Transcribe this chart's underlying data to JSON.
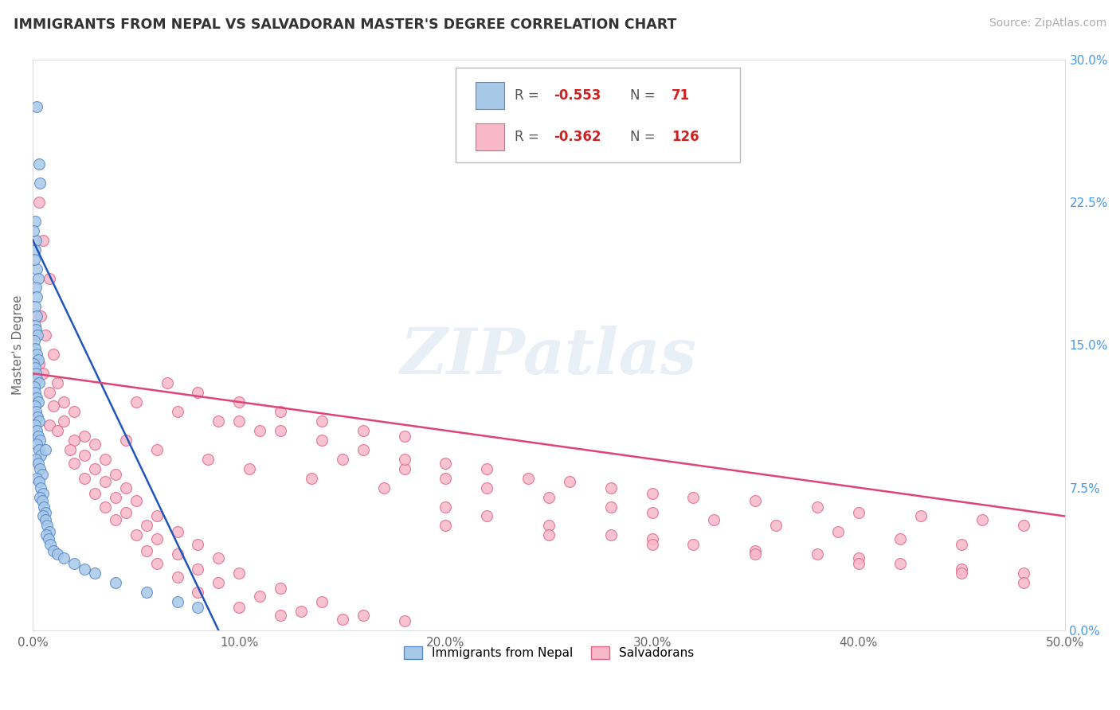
{
  "title": "IMMIGRANTS FROM NEPAL VS SALVADORAN MASTER'S DEGREE CORRELATION CHART",
  "source": "Source: ZipAtlas.com",
  "ylabel_label": "Master's Degree",
  "legend_blue_label": "Immigrants from Nepal",
  "legend_pink_label": "Salvadorans",
  "R_blue": -0.553,
  "N_blue": 71,
  "R_pink": -0.362,
  "N_pink": 126,
  "xmin": 0.0,
  "xmax": 50.0,
  "ymin": 0.0,
  "ymax": 30.0,
  "blue_color": "#a8c8e8",
  "pink_color": "#f8b8c8",
  "blue_line_color": "#2255bb",
  "pink_line_color": "#dd4477",
  "blue_edge": "#5588cc",
  "pink_edge": "#dd6688",
  "watermark_text": "ZIPatlas",
  "x_ticks": [
    0,
    10,
    20,
    30,
    40,
    50
  ],
  "y_ticks_right": [
    0.0,
    7.5,
    15.0,
    22.5,
    30.0
  ],
  "blue_line": [
    [
      0.0,
      20.5
    ],
    [
      9.0,
      0.0
    ]
  ],
  "pink_line": [
    [
      0.0,
      13.5
    ],
    [
      50.0,
      6.0
    ]
  ],
  "blue_scatter": [
    [
      0.2,
      27.5
    ],
    [
      0.3,
      24.5
    ],
    [
      0.35,
      23.5
    ],
    [
      0.1,
      21.5
    ],
    [
      0.15,
      20.5
    ],
    [
      0.2,
      19.0
    ],
    [
      0.25,
      18.5
    ],
    [
      0.05,
      21.0
    ],
    [
      0.1,
      20.0
    ],
    [
      0.08,
      19.5
    ],
    [
      0.15,
      18.0
    ],
    [
      0.2,
      17.5
    ],
    [
      0.12,
      17.0
    ],
    [
      0.18,
      16.5
    ],
    [
      0.1,
      16.0
    ],
    [
      0.15,
      15.8
    ],
    [
      0.22,
      15.5
    ],
    [
      0.08,
      15.2
    ],
    [
      0.12,
      14.8
    ],
    [
      0.18,
      14.5
    ],
    [
      0.25,
      14.2
    ],
    [
      0.05,
      14.0
    ],
    [
      0.1,
      13.8
    ],
    [
      0.15,
      13.5
    ],
    [
      0.2,
      13.2
    ],
    [
      0.3,
      13.0
    ],
    [
      0.08,
      12.8
    ],
    [
      0.12,
      12.5
    ],
    [
      0.18,
      12.2
    ],
    [
      0.25,
      12.0
    ],
    [
      0.1,
      11.8
    ],
    [
      0.15,
      11.5
    ],
    [
      0.22,
      11.2
    ],
    [
      0.3,
      11.0
    ],
    [
      0.12,
      10.8
    ],
    [
      0.18,
      10.5
    ],
    [
      0.25,
      10.2
    ],
    [
      0.35,
      10.0
    ],
    [
      0.2,
      9.8
    ],
    [
      0.3,
      9.5
    ],
    [
      0.4,
      9.2
    ],
    [
      0.15,
      9.0
    ],
    [
      0.25,
      8.8
    ],
    [
      0.35,
      8.5
    ],
    [
      0.45,
      8.2
    ],
    [
      0.2,
      8.0
    ],
    [
      0.3,
      7.8
    ],
    [
      0.4,
      7.5
    ],
    [
      0.5,
      7.2
    ],
    [
      0.35,
      7.0
    ],
    [
      0.45,
      6.8
    ],
    [
      0.55,
      6.5
    ],
    [
      0.6,
      6.2
    ],
    [
      0.5,
      6.0
    ],
    [
      0.6,
      5.8
    ],
    [
      0.7,
      5.5
    ],
    [
      0.8,
      5.2
    ],
    [
      0.65,
      5.0
    ],
    [
      0.75,
      4.8
    ],
    [
      0.85,
      4.5
    ],
    [
      1.0,
      4.2
    ],
    [
      1.2,
      4.0
    ],
    [
      1.5,
      3.8
    ],
    [
      2.0,
      3.5
    ],
    [
      2.5,
      3.2
    ],
    [
      3.0,
      3.0
    ],
    [
      4.0,
      2.5
    ],
    [
      5.5,
      2.0
    ],
    [
      7.0,
      1.5
    ],
    [
      8.0,
      1.2
    ],
    [
      0.6,
      9.5
    ]
  ],
  "pink_scatter": [
    [
      0.3,
      22.5
    ],
    [
      0.5,
      20.5
    ],
    [
      0.8,
      18.5
    ],
    [
      0.4,
      16.5
    ],
    [
      0.6,
      15.5
    ],
    [
      1.0,
      14.5
    ],
    [
      0.3,
      14.0
    ],
    [
      0.5,
      13.5
    ],
    [
      1.2,
      13.0
    ],
    [
      0.8,
      12.5
    ],
    [
      1.5,
      12.0
    ],
    [
      1.0,
      11.8
    ],
    [
      2.0,
      11.5
    ],
    [
      1.5,
      11.0
    ],
    [
      0.8,
      10.8
    ],
    [
      1.2,
      10.5
    ],
    [
      2.5,
      10.2
    ],
    [
      2.0,
      10.0
    ],
    [
      3.0,
      9.8
    ],
    [
      1.8,
      9.5
    ],
    [
      2.5,
      9.2
    ],
    [
      3.5,
      9.0
    ],
    [
      2.0,
      8.8
    ],
    [
      3.0,
      8.5
    ],
    [
      4.0,
      8.2
    ],
    [
      2.5,
      8.0
    ],
    [
      3.5,
      7.8
    ],
    [
      4.5,
      7.5
    ],
    [
      3.0,
      7.2
    ],
    [
      4.0,
      7.0
    ],
    [
      5.0,
      6.8
    ],
    [
      3.5,
      6.5
    ],
    [
      4.5,
      6.2
    ],
    [
      6.0,
      6.0
    ],
    [
      4.0,
      5.8
    ],
    [
      5.5,
      5.5
    ],
    [
      7.0,
      5.2
    ],
    [
      5.0,
      5.0
    ],
    [
      6.0,
      4.8
    ],
    [
      8.0,
      4.5
    ],
    [
      5.5,
      4.2
    ],
    [
      7.0,
      4.0
    ],
    [
      9.0,
      3.8
    ],
    [
      6.0,
      3.5
    ],
    [
      8.0,
      3.2
    ],
    [
      10.0,
      3.0
    ],
    [
      7.0,
      2.8
    ],
    [
      9.0,
      2.5
    ],
    [
      12.0,
      2.2
    ],
    [
      8.0,
      2.0
    ],
    [
      11.0,
      1.8
    ],
    [
      14.0,
      1.5
    ],
    [
      10.0,
      1.2
    ],
    [
      13.0,
      1.0
    ],
    [
      16.0,
      0.8
    ],
    [
      12.0,
      0.8
    ],
    [
      15.0,
      0.6
    ],
    [
      18.0,
      0.5
    ],
    [
      20.0,
      6.5
    ],
    [
      22.0,
      6.0
    ],
    [
      25.0,
      5.5
    ],
    [
      28.0,
      5.0
    ],
    [
      30.0,
      4.8
    ],
    [
      32.0,
      4.5
    ],
    [
      35.0,
      4.2
    ],
    [
      38.0,
      4.0
    ],
    [
      40.0,
      3.8
    ],
    [
      42.0,
      3.5
    ],
    [
      45.0,
      3.2
    ],
    [
      48.0,
      3.0
    ],
    [
      15.0,
      9.0
    ],
    [
      18.0,
      8.5
    ],
    [
      20.0,
      8.0
    ],
    [
      22.0,
      7.5
    ],
    [
      25.0,
      7.0
    ],
    [
      28.0,
      6.5
    ],
    [
      30.0,
      6.2
    ],
    [
      33.0,
      5.8
    ],
    [
      36.0,
      5.5
    ],
    [
      39.0,
      5.2
    ],
    [
      42.0,
      4.8
    ],
    [
      45.0,
      4.5
    ],
    [
      10.0,
      11.0
    ],
    [
      12.0,
      10.5
    ],
    [
      14.0,
      10.0
    ],
    [
      16.0,
      9.5
    ],
    [
      18.0,
      9.0
    ],
    [
      20.0,
      8.8
    ],
    [
      22.0,
      8.5
    ],
    [
      24.0,
      8.0
    ],
    [
      26.0,
      7.8
    ],
    [
      28.0,
      7.5
    ],
    [
      30.0,
      7.2
    ],
    [
      32.0,
      7.0
    ],
    [
      35.0,
      6.8
    ],
    [
      38.0,
      6.5
    ],
    [
      40.0,
      6.2
    ],
    [
      43.0,
      6.0
    ],
    [
      46.0,
      5.8
    ],
    [
      48.0,
      5.5
    ],
    [
      6.5,
      13.0
    ],
    [
      8.0,
      12.5
    ],
    [
      10.0,
      12.0
    ],
    [
      12.0,
      11.5
    ],
    [
      14.0,
      11.0
    ],
    [
      16.0,
      10.5
    ],
    [
      18.0,
      10.2
    ],
    [
      5.0,
      12.0
    ],
    [
      7.0,
      11.5
    ],
    [
      9.0,
      11.0
    ],
    [
      11.0,
      10.5
    ],
    [
      4.5,
      10.0
    ],
    [
      6.0,
      9.5
    ],
    [
      8.5,
      9.0
    ],
    [
      10.5,
      8.5
    ],
    [
      13.5,
      8.0
    ],
    [
      17.0,
      7.5
    ],
    [
      20.0,
      5.5
    ],
    [
      25.0,
      5.0
    ],
    [
      30.0,
      4.5
    ],
    [
      35.0,
      4.0
    ],
    [
      40.0,
      3.5
    ],
    [
      45.0,
      3.0
    ],
    [
      48.0,
      2.5
    ]
  ]
}
